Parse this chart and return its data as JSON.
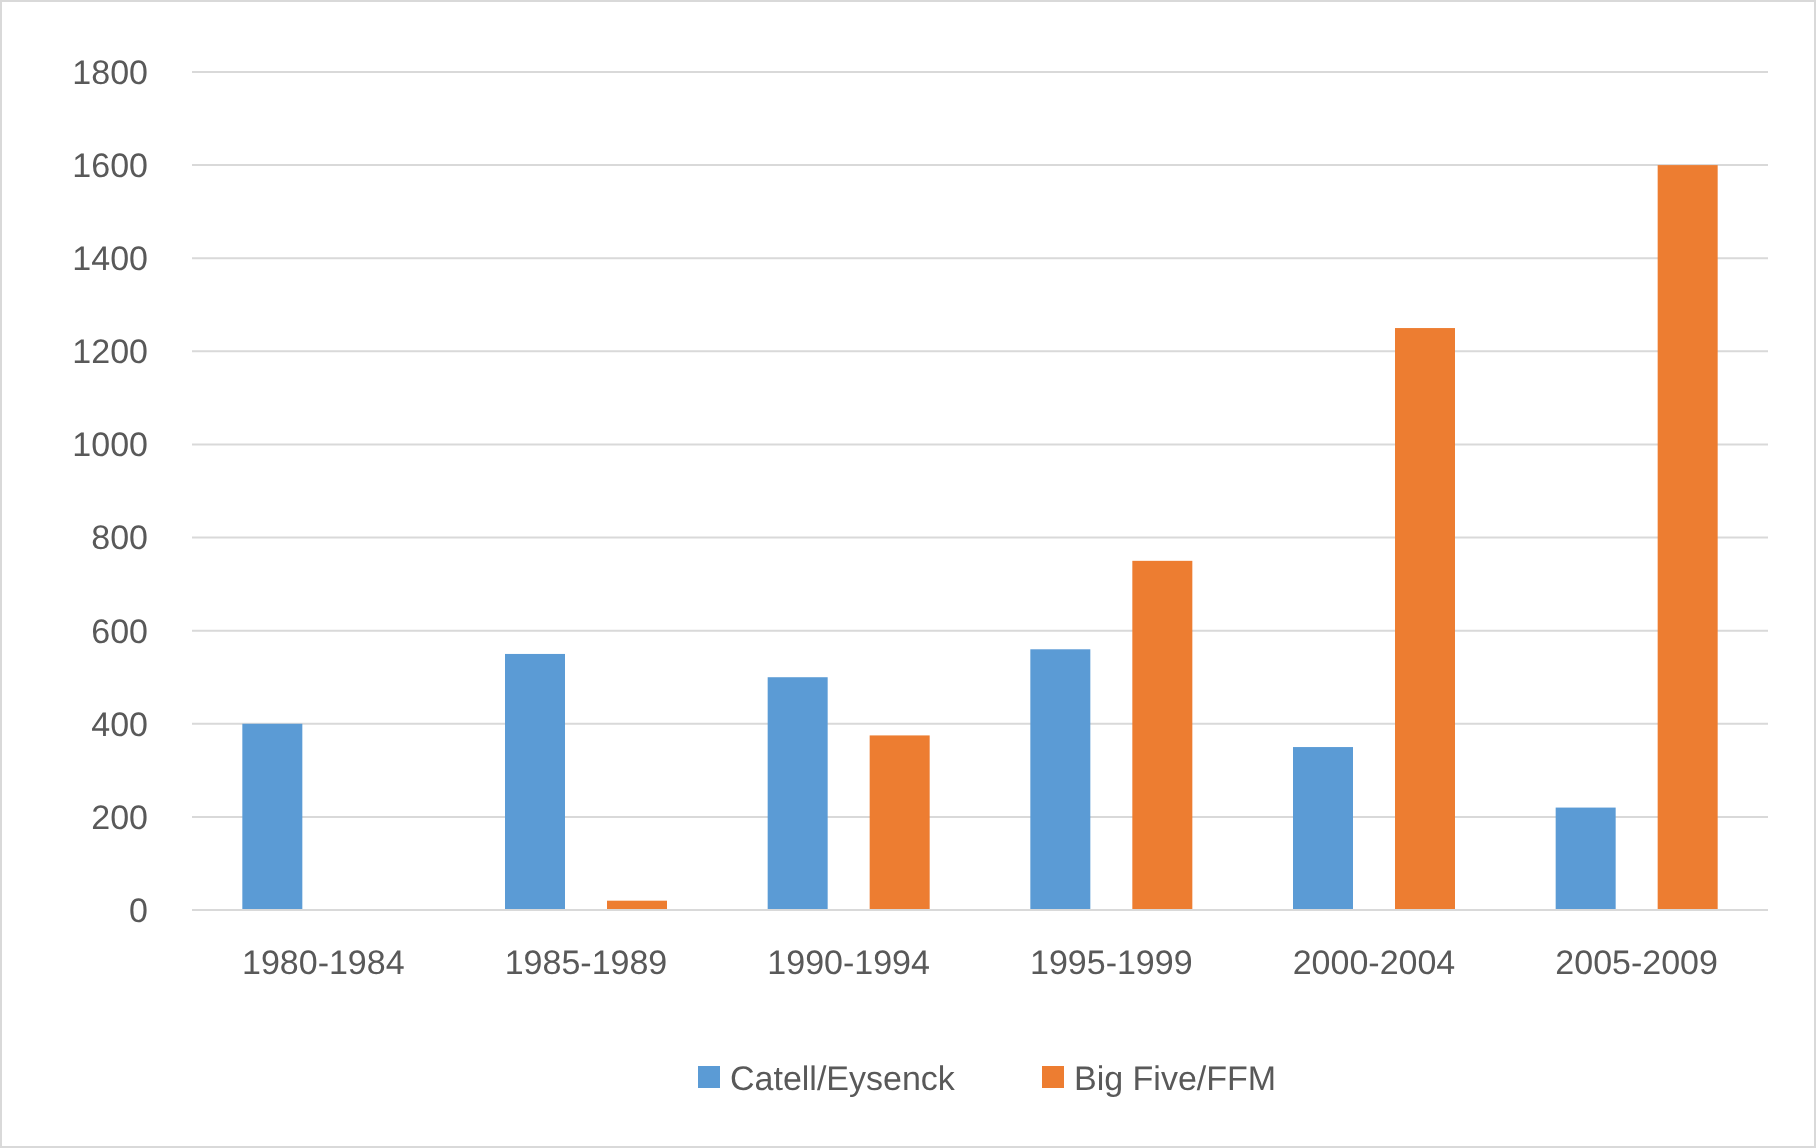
{
  "chart_data": {
    "type": "bar",
    "categories": [
      "1980-1984",
      "1985-1989",
      "1990-1994",
      "1995-1999",
      "2000-2004",
      "2005-2009"
    ],
    "series": [
      {
        "name": "Catell/Eysenck",
        "color": "#5b9bd5",
        "values": [
          400,
          550,
          500,
          560,
          350,
          220
        ]
      },
      {
        "name": "Big Five/FFM",
        "color": "#ed7d31",
        "values": [
          0,
          20,
          375,
          750,
          1250,
          1600
        ]
      }
    ],
    "ylim": [
      0,
      1800
    ],
    "yticks": [
      0,
      200,
      400,
      600,
      800,
      1000,
      1200,
      1400,
      1600,
      1800
    ],
    "grid": "y",
    "legend": "bottom"
  }
}
